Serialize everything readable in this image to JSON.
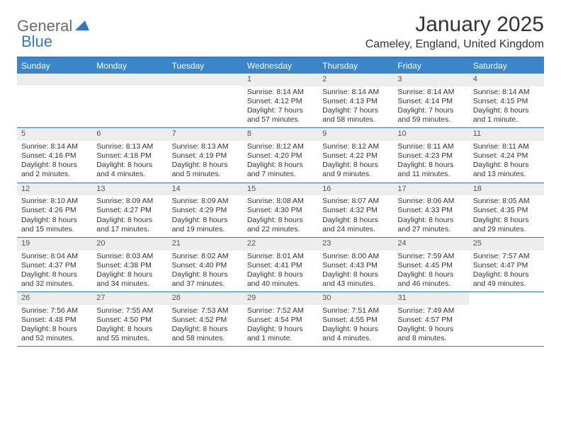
{
  "logo": {
    "text1": "General",
    "text2": "Blue"
  },
  "title": "January 2025",
  "location": "Cameley, England, United Kingdom",
  "colors": {
    "header_bg": "#3a86c8",
    "border": "#2f7ac0",
    "daynum_bg": "#ededed",
    "text": "#333333",
    "logo_gray": "#6b6b6b",
    "logo_blue": "#2f7ac0"
  },
  "dow": [
    "Sunday",
    "Monday",
    "Tuesday",
    "Wednesday",
    "Thursday",
    "Friday",
    "Saturday"
  ],
  "weeks": [
    [
      null,
      null,
      null,
      {
        "n": "1",
        "sr": "Sunrise: 8:14 AM",
        "ss": "Sunset: 4:12 PM",
        "dl1": "Daylight: 7 hours",
        "dl2": "and 57 minutes."
      },
      {
        "n": "2",
        "sr": "Sunrise: 8:14 AM",
        "ss": "Sunset: 4:13 PM",
        "dl1": "Daylight: 7 hours",
        "dl2": "and 58 minutes."
      },
      {
        "n": "3",
        "sr": "Sunrise: 8:14 AM",
        "ss": "Sunset: 4:14 PM",
        "dl1": "Daylight: 7 hours",
        "dl2": "and 59 minutes."
      },
      {
        "n": "4",
        "sr": "Sunrise: 8:14 AM",
        "ss": "Sunset: 4:15 PM",
        "dl1": "Daylight: 8 hours",
        "dl2": "and 1 minute."
      }
    ],
    [
      {
        "n": "5",
        "sr": "Sunrise: 8:14 AM",
        "ss": "Sunset: 4:16 PM",
        "dl1": "Daylight: 8 hours",
        "dl2": "and 2 minutes."
      },
      {
        "n": "6",
        "sr": "Sunrise: 8:13 AM",
        "ss": "Sunset: 4:18 PM",
        "dl1": "Daylight: 8 hours",
        "dl2": "and 4 minutes."
      },
      {
        "n": "7",
        "sr": "Sunrise: 8:13 AM",
        "ss": "Sunset: 4:19 PM",
        "dl1": "Daylight: 8 hours",
        "dl2": "and 5 minutes."
      },
      {
        "n": "8",
        "sr": "Sunrise: 8:12 AM",
        "ss": "Sunset: 4:20 PM",
        "dl1": "Daylight: 8 hours",
        "dl2": "and 7 minutes."
      },
      {
        "n": "9",
        "sr": "Sunrise: 8:12 AM",
        "ss": "Sunset: 4:22 PM",
        "dl1": "Daylight: 8 hours",
        "dl2": "and 9 minutes."
      },
      {
        "n": "10",
        "sr": "Sunrise: 8:11 AM",
        "ss": "Sunset: 4:23 PM",
        "dl1": "Daylight: 8 hours",
        "dl2": "and 11 minutes."
      },
      {
        "n": "11",
        "sr": "Sunrise: 8:11 AM",
        "ss": "Sunset: 4:24 PM",
        "dl1": "Daylight: 8 hours",
        "dl2": "and 13 minutes."
      }
    ],
    [
      {
        "n": "12",
        "sr": "Sunrise: 8:10 AM",
        "ss": "Sunset: 4:26 PM",
        "dl1": "Daylight: 8 hours",
        "dl2": "and 15 minutes."
      },
      {
        "n": "13",
        "sr": "Sunrise: 8:09 AM",
        "ss": "Sunset: 4:27 PM",
        "dl1": "Daylight: 8 hours",
        "dl2": "and 17 minutes."
      },
      {
        "n": "14",
        "sr": "Sunrise: 8:09 AM",
        "ss": "Sunset: 4:29 PM",
        "dl1": "Daylight: 8 hours",
        "dl2": "and 19 minutes."
      },
      {
        "n": "15",
        "sr": "Sunrise: 8:08 AM",
        "ss": "Sunset: 4:30 PM",
        "dl1": "Daylight: 8 hours",
        "dl2": "and 22 minutes."
      },
      {
        "n": "16",
        "sr": "Sunrise: 8:07 AM",
        "ss": "Sunset: 4:32 PM",
        "dl1": "Daylight: 8 hours",
        "dl2": "and 24 minutes."
      },
      {
        "n": "17",
        "sr": "Sunrise: 8:06 AM",
        "ss": "Sunset: 4:33 PM",
        "dl1": "Daylight: 8 hours",
        "dl2": "and 27 minutes."
      },
      {
        "n": "18",
        "sr": "Sunrise: 8:05 AM",
        "ss": "Sunset: 4:35 PM",
        "dl1": "Daylight: 8 hours",
        "dl2": "and 29 minutes."
      }
    ],
    [
      {
        "n": "19",
        "sr": "Sunrise: 8:04 AM",
        "ss": "Sunset: 4:37 PM",
        "dl1": "Daylight: 8 hours",
        "dl2": "and 32 minutes."
      },
      {
        "n": "20",
        "sr": "Sunrise: 8:03 AM",
        "ss": "Sunset: 4:38 PM",
        "dl1": "Daylight: 8 hours",
        "dl2": "and 34 minutes."
      },
      {
        "n": "21",
        "sr": "Sunrise: 8:02 AM",
        "ss": "Sunset: 4:40 PM",
        "dl1": "Daylight: 8 hours",
        "dl2": "and 37 minutes."
      },
      {
        "n": "22",
        "sr": "Sunrise: 8:01 AM",
        "ss": "Sunset: 4:41 PM",
        "dl1": "Daylight: 8 hours",
        "dl2": "and 40 minutes."
      },
      {
        "n": "23",
        "sr": "Sunrise: 8:00 AM",
        "ss": "Sunset: 4:43 PM",
        "dl1": "Daylight: 8 hours",
        "dl2": "and 43 minutes."
      },
      {
        "n": "24",
        "sr": "Sunrise: 7:59 AM",
        "ss": "Sunset: 4:45 PM",
        "dl1": "Daylight: 8 hours",
        "dl2": "and 46 minutes."
      },
      {
        "n": "25",
        "sr": "Sunrise: 7:57 AM",
        "ss": "Sunset: 4:47 PM",
        "dl1": "Daylight: 8 hours",
        "dl2": "and 49 minutes."
      }
    ],
    [
      {
        "n": "26",
        "sr": "Sunrise: 7:56 AM",
        "ss": "Sunset: 4:48 PM",
        "dl1": "Daylight: 8 hours",
        "dl2": "and 52 minutes."
      },
      {
        "n": "27",
        "sr": "Sunrise: 7:55 AM",
        "ss": "Sunset: 4:50 PM",
        "dl1": "Daylight: 8 hours",
        "dl2": "and 55 minutes."
      },
      {
        "n": "28",
        "sr": "Sunrise: 7:53 AM",
        "ss": "Sunset: 4:52 PM",
        "dl1": "Daylight: 8 hours",
        "dl2": "and 58 minutes."
      },
      {
        "n": "29",
        "sr": "Sunrise: 7:52 AM",
        "ss": "Sunset: 4:54 PM",
        "dl1": "Daylight: 9 hours",
        "dl2": "and 1 minute."
      },
      {
        "n": "30",
        "sr": "Sunrise: 7:51 AM",
        "ss": "Sunset: 4:55 PM",
        "dl1": "Daylight: 9 hours",
        "dl2": "and 4 minutes."
      },
      {
        "n": "31",
        "sr": "Sunrise: 7:49 AM",
        "ss": "Sunset: 4:57 PM",
        "dl1": "Daylight: 9 hours",
        "dl2": "and 8 minutes."
      },
      null
    ]
  ]
}
